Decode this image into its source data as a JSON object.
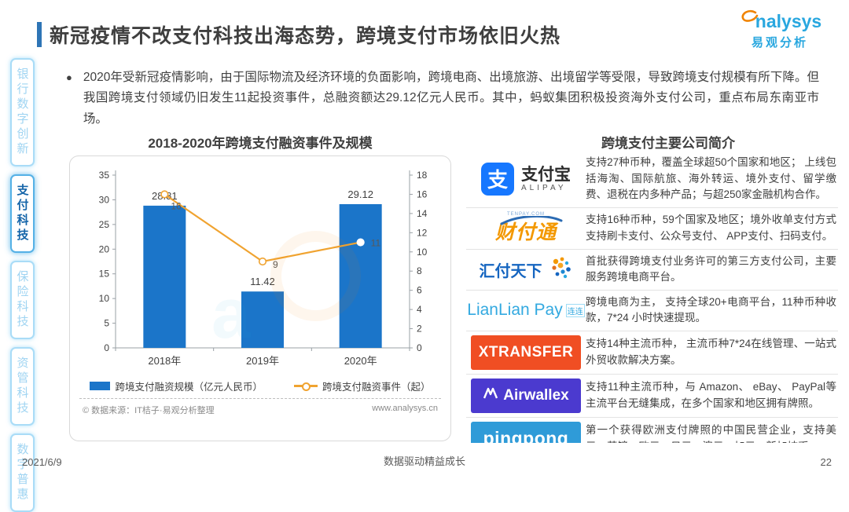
{
  "header": {
    "title": "新冠疫情不改支付科技出海态势，跨境支付市场依旧火热",
    "accent_color": "#2E75B6",
    "logo": {
      "brand_en": "analysys",
      "brand_en_rest": "nalysys",
      "brand_cn": "易观分析",
      "brand_color": "#29A7DF",
      "swoosh_color": "#F08300"
    }
  },
  "sidebar": {
    "items": [
      {
        "label": "银行数字创新",
        "active": false
      },
      {
        "label": "支付科技",
        "active": true
      },
      {
        "label": "保险科技",
        "active": false
      },
      {
        "label": "资管科技",
        "active": false
      },
      {
        "label": "数字普惠",
        "active": false
      }
    ],
    "active_color": "#1565A9",
    "inactive_color": "#9FD4F2"
  },
  "intro": {
    "bullet": "2020年受新冠疫情影响，由于国际物流及经济环境的负面影响，跨境电商、出境旅游、出境留学等受限，导致跨境支付规模有所下降。但我国跨境支付领域仍旧发生11起投资事件，总融资额达29.12亿元人民币。其中，蚂蚁集团积极投资海外支付公司，重点布局东南亚市场。"
  },
  "chart": {
    "title": "2018-2020年跨境支付融资事件及规模",
    "source": "© 数据来源：IT桔子·易观分析整理",
    "site": "www.analysys.cn"
  },
  "chart_data": {
    "type": "bar",
    "categories": [
      "2018年",
      "2019年",
      "2020年"
    ],
    "series": [
      {
        "name": "跨境支付融资规模（亿元人民币）",
        "type": "bar",
        "axis": "left",
        "color": "#1B75C9",
        "values": [
          28.81,
          11.42,
          29.12
        ]
      },
      {
        "name": "跨境支付融资事件（起）",
        "type": "line",
        "axis": "right",
        "color": "#F0A330",
        "values": [
          16,
          9,
          11
        ]
      }
    ],
    "title": "2018-2020年跨境支付融资事件及规模",
    "xlabel": "",
    "ylabel": "",
    "left_axis": {
      "min": 0,
      "max": 35,
      "step": 5
    },
    "right_axis": {
      "min": 0,
      "max": 18,
      "step": 2
    },
    "grid": false,
    "legend_position": "bottom"
  },
  "companies": {
    "title": "跨境支付主要公司简介",
    "rows": [
      {
        "name": "支付宝",
        "logo": {
          "square_char": "支",
          "cn": "支付宝",
          "en": "ALIPAY",
          "color": "#1677FF"
        },
        "desc": "支持27种币种，覆盖全球超50个国家和地区； 上线包括海淘、国际航旅、海外转运、境外支付、留学缴费、退税在内多种产品；与超250家金融机构合作。"
      },
      {
        "name": "财付通",
        "logo": {
          "tiny": "TENPAY.COM",
          "cn": "财付通",
          "color": "#F39800"
        },
        "desc": "支持16种币种，59个国家及地区；境外收单支付方式支持刷卡支付、公众号支付、 APP支付、扫码支付。"
      },
      {
        "name": "汇付天下",
        "logo": {
          "cn": "汇付天下",
          "color": "#1565C0"
        },
        "desc": "首批获得跨境支付业务许可的第三方支付公司，主要服务跨境电商平台。"
      },
      {
        "name": "连连支付",
        "logo": {
          "en": "LianLian Pay",
          "cn": "连连",
          "color": "#33A9E0"
        },
        "desc": "跨境电商为主， 支持全球20+电商平台，11种币种收款，7*24 小时快速提现。"
      },
      {
        "name": "XTRANSFER",
        "logo": {
          "en": "XTRANSFER",
          "bg": "#F04E23"
        },
        "desc": "支持14种主流币种， 主流币种7*24在线管理、一站式外贸收款解决方案。"
      },
      {
        "name": "Airwallex",
        "logo": {
          "en": "Airwallex",
          "bg": "#4B3ACF"
        },
        "desc": "支持11种主流币种，与 Amazon、 eBay、 PayPal等主流平台无缝集成，在多个国家和地区拥有牌照。"
      },
      {
        "name": "pingpong",
        "logo": {
          "en": "pingpong",
          "bg": "#2F9BD8"
        },
        "desc": "第一个获得欧洲支付牌照的中国民营企业，支持美元、英镑、欧元、日元、澳元、加元、新加坡币。"
      }
    ]
  },
  "footer": {
    "date": "2021/6/9",
    "slogan": "数据驱动精益成长",
    "page": "22"
  }
}
